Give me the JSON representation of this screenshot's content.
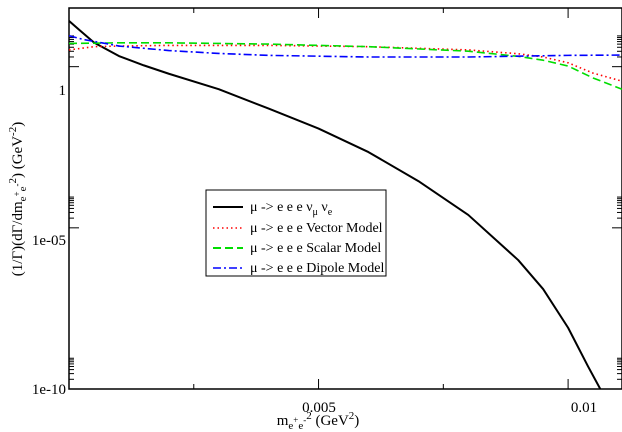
{
  "chart_data": {
    "type": "line",
    "title": "",
    "xlabel": {
      "base": "m",
      "sub_e1": "e",
      "sup_plus": "+",
      "sub_e2": "e",
      "sup_minus": "-",
      "sup_2": "2",
      "unit_open": " (GeV",
      "unit_sup": "2",
      "unit_close": ")"
    },
    "ylabel": {
      "prefix": "(1/Γ)(dΓ/dm",
      "sub_e1": "e",
      "sup_plus": "+",
      "sub_e2": "e",
      "sup_minus": "-",
      "sup_2": "2",
      "mid": ") (GeV",
      "unit_sup": "-2",
      "end": ")"
    },
    "x_axis": {
      "min": 0.0,
      "max": 0.01108,
      "ticks": [
        0.005,
        0.01
      ],
      "tick_labels": [
        "0.005",
        "0.01"
      ],
      "minor_step": 0.0025
    },
    "y_axis": {
      "scale": "log",
      "min_exp": -10,
      "max_exp": 1.82,
      "ticks_exp": [
        -10,
        -5,
        0
      ],
      "tick_labels": [
        "1e-10",
        "1e-05",
        "1"
      ]
    },
    "grid": false,
    "legend_placement": "center-left",
    "series": [
      {
        "name": "μ -> e e e ν",
        "name_sub1": "μ",
        "name_mid": " ν",
        "name_sub2": "e",
        "color": "#000000",
        "dash": "solid",
        "points": [
          [
            0.0,
            1.42
          ],
          [
            0.0002,
            1.15
          ],
          [
            0.0005,
            0.75
          ],
          [
            0.001,
            0.33
          ],
          [
            0.0015,
            0.04
          ],
          [
            0.002,
            -0.22
          ],
          [
            0.003,
            -0.7
          ],
          [
            0.004,
            -1.3
          ],
          [
            0.005,
            -1.92
          ],
          [
            0.006,
            -2.65
          ],
          [
            0.007,
            -3.55
          ],
          [
            0.008,
            -4.6
          ],
          [
            0.009,
            -6.0
          ],
          [
            0.0095,
            -6.9
          ],
          [
            0.01,
            -8.1
          ],
          [
            0.0104,
            -9.3
          ],
          [
            0.01075,
            -10.3
          ]
        ]
      },
      {
        "name": "μ -> e e e Vector Model",
        "color": "#ff0000",
        "dash": "dotted",
        "points": [
          [
            0.0,
            0.52
          ],
          [
            0.0005,
            0.62
          ],
          [
            0.001,
            0.64
          ],
          [
            0.002,
            0.66
          ],
          [
            0.004,
            0.66
          ],
          [
            0.006,
            0.62
          ],
          [
            0.008,
            0.52
          ],
          [
            0.009,
            0.4
          ],
          [
            0.0095,
            0.3
          ],
          [
            0.01,
            0.12
          ],
          [
            0.0105,
            -0.2
          ],
          [
            0.01108,
            -0.45
          ]
        ]
      },
      {
        "name": "μ -> e e e Scalar Model",
        "color": "#00dd00",
        "dash": "dashed",
        "points": [
          [
            0.0,
            0.72
          ],
          [
            0.001,
            0.74
          ],
          [
            0.002,
            0.74
          ],
          [
            0.004,
            0.7
          ],
          [
            0.006,
            0.62
          ],
          [
            0.008,
            0.48
          ],
          [
            0.009,
            0.32
          ],
          [
            0.0095,
            0.2
          ],
          [
            0.01,
            0.02
          ],
          [
            0.0105,
            -0.35
          ],
          [
            0.01108,
            -0.7
          ]
        ]
      },
      {
        "name": "μ -> e e e Dipole Model",
        "color": "#0000ff",
        "dash": "dashdot",
        "points": [
          [
            0.0,
            0.96
          ],
          [
            0.0003,
            0.84
          ],
          [
            0.0008,
            0.7
          ],
          [
            0.001,
            0.64
          ],
          [
            0.002,
            0.5
          ],
          [
            0.003,
            0.41
          ],
          [
            0.004,
            0.35
          ],
          [
            0.006,
            0.3
          ],
          [
            0.008,
            0.3
          ],
          [
            0.01,
            0.35
          ],
          [
            0.01108,
            0.36
          ]
        ]
      }
    ]
  }
}
